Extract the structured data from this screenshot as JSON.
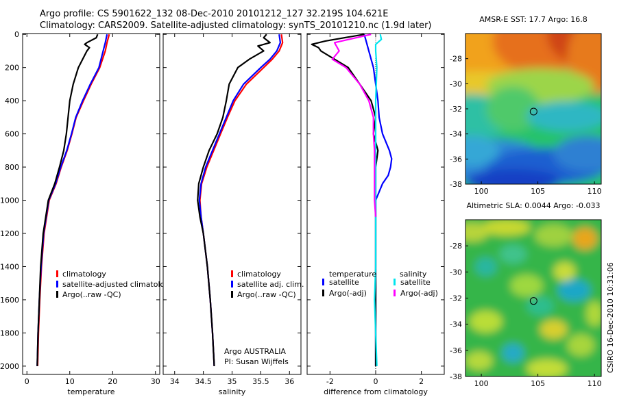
{
  "header": {
    "line1": "Argo profile: CS 5901622_132 08-Dec-2010 20101212_127 32.219S 104.621E",
    "line2": "Climatology: CARS2009. Satellite-adjusted climatology: synTS_20101210.nc (1.9d later)"
  },
  "side_label": "CSIRO 16-Dec-2010 10:31:06",
  "colors": {
    "red": "#ff0000",
    "blue": "#0000ff",
    "black": "#000000",
    "cyan": "#00e5ee",
    "magenta": "#ff00ff"
  },
  "chart_data": [
    {
      "type": "line",
      "name": "temperature-panel",
      "xlabel": "temperature",
      "ylabel": "",
      "xlim": [
        -1,
        31
      ],
      "ylim": [
        2050,
        -5
      ],
      "xticks": [
        0,
        10,
        20,
        30
      ],
      "yticks": [
        0,
        200,
        400,
        600,
        800,
        1000,
        1200,
        1400,
        1600,
        1800,
        2000
      ],
      "legend": [
        "climatology",
        "satellite-adjusted climatology",
        "Argo(..raw -QC)"
      ],
      "series": [
        {
          "name": "climatology",
          "color": "red",
          "depth": [
            0,
            50,
            100,
            200,
            300,
            400,
            500,
            600,
            700,
            800,
            900,
            1000,
            1200,
            1400,
            1600,
            1800,
            2000
          ],
          "values": [
            19.2,
            18.7,
            18.3,
            17.0,
            15.0,
            13.2,
            11.5,
            10.5,
            9.4,
            8.0,
            6.8,
            5.2,
            4.0,
            3.4,
            3.0,
            2.7,
            2.5
          ]
        },
        {
          "name": "satellite-adjusted climatology",
          "color": "blue",
          "depth": [
            0,
            50,
            100,
            200,
            300,
            400,
            500,
            600,
            700,
            800,
            900,
            1000,
            1200,
            1400,
            1600,
            1800,
            2000
          ],
          "values": [
            18.7,
            18.3,
            17.8,
            16.8,
            14.8,
            13.0,
            11.4,
            10.4,
            9.3,
            7.9,
            6.7,
            5.1,
            3.9,
            3.3,
            2.9,
            2.6,
            2.4
          ]
        },
        {
          "name": "Argo(..raw -QC)",
          "color": "black",
          "depth": [
            0,
            20,
            50,
            60,
            80,
            100,
            150,
            200,
            300,
            400,
            500,
            600,
            700,
            800,
            900,
            1000,
            1200,
            1400,
            1600,
            1800,
            2000
          ],
          "values": [
            16.5,
            16.2,
            14.0,
            13.5,
            14.6,
            14.0,
            13.0,
            12.0,
            10.8,
            10.0,
            9.6,
            9.2,
            8.6,
            7.6,
            6.5,
            5.0,
            3.8,
            3.2,
            2.9,
            2.6,
            2.4
          ]
        }
      ]
    },
    {
      "type": "line",
      "name": "salinity-panel",
      "xlabel": "salinity",
      "ylabel": "",
      "xlim": [
        33.8,
        36.2
      ],
      "ylim": [
        2050,
        -5
      ],
      "xticks": [
        34,
        34.5,
        35,
        35.5,
        36
      ],
      "xtick_labels": [
        "34",
        "34.5",
        "35",
        "35.5",
        "36"
      ],
      "legend": [
        "climatology",
        "satellite adj. clim.",
        "Argo(..raw -QC)"
      ],
      "annotation": [
        "Argo AUSTRALIA",
        "PI: Susan Wijffels"
      ],
      "series": [
        {
          "name": "climatology",
          "color": "red",
          "depth": [
            0,
            50,
            100,
            150,
            200,
            300,
            400,
            500,
            600,
            700,
            800,
            900,
            1000,
            1100,
            1200,
            1400,
            1600,
            1800,
            2000
          ],
          "values": [
            35.86,
            35.88,
            35.82,
            35.7,
            35.55,
            35.25,
            35.05,
            34.92,
            34.8,
            34.68,
            34.56,
            34.47,
            34.44,
            34.46,
            34.5,
            34.57,
            34.62,
            34.66,
            34.69
          ]
        },
        {
          "name": "satellite adj. clim.",
          "color": "blue",
          "depth": [
            0,
            50,
            100,
            150,
            200,
            300,
            400,
            500,
            600,
            700,
            800,
            900,
            1000,
            1100,
            1200,
            1400,
            1600,
            1800,
            2000
          ],
          "values": [
            35.82,
            35.84,
            35.78,
            35.66,
            35.5,
            35.2,
            35.02,
            34.9,
            34.78,
            34.66,
            34.54,
            34.46,
            34.43,
            34.46,
            34.5,
            34.57,
            34.62,
            34.66,
            34.69
          ]
        },
        {
          "name": "Argo(..raw -QC)",
          "color": "black",
          "depth": [
            0,
            20,
            50,
            70,
            100,
            150,
            200,
            300,
            400,
            500,
            600,
            700,
            800,
            900,
            1000,
            1100,
            1200,
            1400,
            1600,
            1800,
            2000
          ],
          "values": [
            35.6,
            35.55,
            35.66,
            35.45,
            35.55,
            35.3,
            35.1,
            34.95,
            34.9,
            34.84,
            34.74,
            34.6,
            34.5,
            34.42,
            34.4,
            34.44,
            34.5,
            34.57,
            34.62,
            34.66,
            34.69
          ]
        }
      ]
    },
    {
      "type": "line",
      "name": "difference-panel",
      "xlabel": "difference from climatology",
      "ylabel": "",
      "xlim": [
        -3,
        3
      ],
      "ylim": [
        2050,
        -5
      ],
      "xticks": [
        -2,
        0,
        2
      ],
      "legend_headers": [
        "temperature",
        "salinity"
      ],
      "legend": [
        "satellite",
        "Argo(-adj)",
        "satellite",
        "Argo(-adj)"
      ],
      "series": [
        {
          "name": "temperature satellite",
          "color": "blue",
          "depth": [
            0,
            50,
            100,
            200,
            300,
            400,
            500,
            600,
            700,
            750,
            800,
            850,
            900,
            1000,
            1200,
            1400,
            1600,
            1800,
            2000
          ],
          "values": [
            -0.5,
            -0.4,
            -0.3,
            -0.1,
            0.0,
            0.1,
            0.15,
            0.3,
            0.6,
            0.7,
            0.65,
            0.55,
            0.3,
            0.0,
            0.0,
            0.0,
            0.0,
            0.0,
            0.0
          ]
        },
        {
          "name": "temperature Argo(-adj)",
          "color": "black",
          "depth": [
            0,
            40,
            60,
            80,
            100,
            150,
            200,
            300,
            400,
            500,
            600,
            700,
            800,
            900,
            1000,
            1200,
            1400,
            1600,
            1800,
            2000
          ],
          "values": [
            -0.5,
            -2.2,
            -2.8,
            -2.5,
            -2.4,
            -1.8,
            -1.2,
            -0.7,
            -0.2,
            0.0,
            -0.1,
            0.1,
            0.0,
            0.0,
            0.0,
            0.0,
            0.0,
            0.0,
            0.0,
            0.0
          ]
        },
        {
          "name": "salinity satellite",
          "color": "cyan",
          "depth": [
            0,
            30,
            60,
            100,
            200,
            400,
            600,
            800,
            1000,
            1200,
            1400,
            1600,
            1800,
            2000
          ],
          "values": [
            0.2,
            0.25,
            0.0,
            0.0,
            0.05,
            0.0,
            0.0,
            0.0,
            0.0,
            0.0,
            0.0,
            -0.05,
            0.0,
            0.05
          ]
        },
        {
          "name": "salinity Argo(-adj)",
          "color": "magenta",
          "depth": [
            0,
            50,
            100,
            150,
            200,
            300,
            400,
            500,
            600,
            700,
            800,
            900,
            1000,
            1100
          ],
          "values": [
            -0.2,
            -1.8,
            -1.6,
            -1.9,
            -1.3,
            -0.7,
            -0.3,
            -0.1,
            -0.1,
            -0.05,
            -0.05,
            -0.05,
            -0.05,
            0.0
          ]
        }
      ]
    },
    {
      "type": "heatmap",
      "name": "sst-map",
      "title": "AMSR-E SST: 17.7 Argo: 16.8",
      "xlim": [
        98.6,
        110.6
      ],
      "ylim": [
        -38,
        -26
      ],
      "xticks": [
        100,
        105,
        110
      ],
      "yticks": [
        -28,
        -30,
        -32,
        -34,
        -36,
        -38
      ],
      "argo_position": {
        "lon": 104.621,
        "lat": -32.219
      }
    },
    {
      "type": "heatmap",
      "name": "sla-map",
      "title": "Altimetric SLA: 0.0044 Argo: -0.033",
      "xlim": [
        98.6,
        110.6
      ],
      "ylim": [
        -38,
        -26
      ],
      "xticks": [
        100,
        105,
        110
      ],
      "yticks": [
        -28,
        -30,
        -32,
        -34,
        -36,
        -38
      ],
      "argo_position": {
        "lon": 104.621,
        "lat": -32.219
      }
    }
  ]
}
